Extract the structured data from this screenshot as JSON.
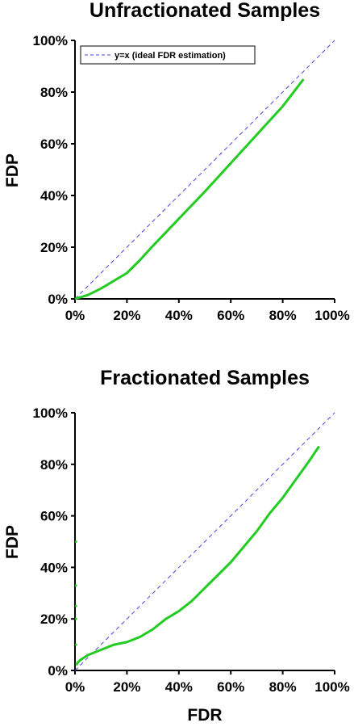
{
  "chart_data": [
    {
      "type": "line",
      "title": "Unfractionated Samples",
      "xlabel": "",
      "ylabel": "FDP",
      "xlim": [
        0,
        1
      ],
      "ylim": [
        0,
        1
      ],
      "xticks": [
        "0%",
        "20%",
        "40%",
        "60%",
        "80%",
        "100%"
      ],
      "yticks": [
        "0%",
        "20%",
        "40%",
        "60%",
        "80%",
        "100%"
      ],
      "legend": {
        "position": "top-left",
        "entries": [
          "y=x (ideal FDR estimation)"
        ]
      },
      "grid": false,
      "series": [
        {
          "name": "y=x (ideal FDR estimation)",
          "style": "dashed",
          "color": "#4444ee",
          "x": [
            0,
            1
          ],
          "y": [
            0,
            1
          ]
        },
        {
          "style": "solid",
          "color": "#22cc22",
          "x": [
            0,
            0.05,
            0.1,
            0.15,
            0.2,
            0.25,
            0.3,
            0.4,
            0.5,
            0.6,
            0.7,
            0.8,
            0.88
          ],
          "y": [
            0,
            0.015,
            0.04,
            0.07,
            0.1,
            0.15,
            0.205,
            0.31,
            0.415,
            0.525,
            0.635,
            0.745,
            0.85
          ]
        }
      ]
    },
    {
      "type": "line",
      "title": "Fractionated Samples",
      "xlabel": "FDR",
      "ylabel": "FDP",
      "xlim": [
        0,
        1
      ],
      "ylim": [
        0,
        1
      ],
      "xticks": [
        "0%",
        "20%",
        "40%",
        "60%",
        "80%",
        "100%"
      ],
      "yticks": [
        "0%",
        "20%",
        "40%",
        "60%",
        "80%",
        "100%"
      ],
      "grid": false,
      "series": [
        {
          "style": "dashed",
          "color": "#4444ee",
          "x": [
            0,
            1
          ],
          "y": [
            0,
            1
          ]
        },
        {
          "style": "solid",
          "color": "#22cc22",
          "x": [
            0.005,
            0.01,
            0.02,
            0.05,
            0.1,
            0.15,
            0.2,
            0.25,
            0.3,
            0.35,
            0.4,
            0.45,
            0.5,
            0.55,
            0.6,
            0.65,
            0.7,
            0.75,
            0.8,
            0.85,
            0.9,
            0.94
          ],
          "y": [
            0.02,
            0.03,
            0.04,
            0.06,
            0.08,
            0.1,
            0.11,
            0.13,
            0.16,
            0.2,
            0.23,
            0.27,
            0.32,
            0.37,
            0.42,
            0.48,
            0.54,
            0.61,
            0.67,
            0.74,
            0.81,
            0.87
          ]
        },
        {
          "style": "points",
          "color": "#22cc22",
          "x": [
            0.004,
            0.004,
            0.004,
            0.004,
            0.004
          ],
          "y": [
            0.5,
            0.33,
            0.25,
            0.2,
            0.1
          ]
        }
      ]
    }
  ]
}
